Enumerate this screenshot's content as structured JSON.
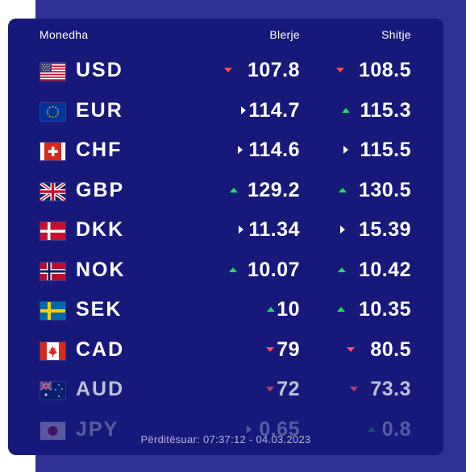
{
  "colors": {
    "page_bg": "#2e3192",
    "card_bg": "#17197a",
    "up": "#2bd46a",
    "down": "#ff4b5c",
    "flat": "#ffffff"
  },
  "header": {
    "currency": "Monedha",
    "buy": "Blerje",
    "sell": "Shitje"
  },
  "rates": [
    {
      "code": "USD",
      "flag": "us-flag-icon",
      "buy": "107.8",
      "buy_trend": "down",
      "sell": "108.5",
      "sell_trend": "down"
    },
    {
      "code": "EUR",
      "flag": "eu-flag-icon",
      "buy": "114.7",
      "buy_trend": "flat",
      "sell": "115.3",
      "sell_trend": "up"
    },
    {
      "code": "CHF",
      "flag": "ch-flag-icon",
      "buy": "114.6",
      "buy_trend": "flat",
      "sell": "115.5",
      "sell_trend": "flat"
    },
    {
      "code": "GBP",
      "flag": "gb-flag-icon",
      "buy": "129.2",
      "buy_trend": "up",
      "sell": "130.5",
      "sell_trend": "up"
    },
    {
      "code": "DKK",
      "flag": "dk-flag-icon",
      "buy": "11.34",
      "buy_trend": "flat",
      "sell": "15.39",
      "sell_trend": "flat"
    },
    {
      "code": "NOK",
      "flag": "no-flag-icon",
      "buy": "10.07",
      "buy_trend": "up",
      "sell": "10.42",
      "sell_trend": "up"
    },
    {
      "code": "SEK",
      "flag": "se-flag-icon",
      "buy": "10",
      "buy_trend": "up",
      "sell": "10.35",
      "sell_trend": "up"
    },
    {
      "code": "CAD",
      "flag": "ca-flag-icon",
      "buy": "79",
      "buy_trend": "down",
      "sell": "80.5",
      "sell_trend": "down"
    },
    {
      "code": "AUD",
      "flag": "au-flag-icon",
      "buy": "72",
      "buy_trend": "down",
      "sell": "73.3",
      "sell_trend": "down"
    },
    {
      "code": "JPY",
      "flag": "jp-flag-icon",
      "buy": "0.65",
      "buy_trend": "flat",
      "sell": "0.8",
      "sell_trend": "up"
    }
  ],
  "footer": {
    "updated": "Përditësuar: 07:37:12 - 04.03.2023"
  }
}
